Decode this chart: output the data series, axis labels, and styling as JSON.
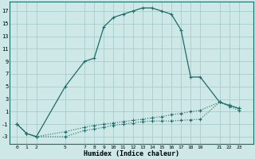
{
  "xlabel": "Humidex (Indice chaleur)",
  "bg_color": "#cde8e6",
  "line_color": "#1e6b67",
  "grid_color": "#a8cccb",
  "series": [
    {
      "name": "line1_dotted_lower",
      "x": [
        0,
        1,
        2,
        5,
        7,
        8,
        9,
        10,
        11,
        12,
        13,
        14,
        15,
        16,
        17,
        18,
        19,
        21,
        22,
        23
      ],
      "y": [
        -1.0,
        -2.5,
        -3.0,
        -3.0,
        -2.0,
        -1.8,
        -1.5,
        -1.2,
        -1.0,
        -0.8,
        -0.6,
        -0.5,
        -0.5,
        -0.5,
        -0.4,
        -0.3,
        -0.2,
        2.5,
        1.8,
        1.2
      ],
      "ls": "dotted",
      "lw": 0.8,
      "marker": "+"
    },
    {
      "name": "line2_dotted_mid",
      "x": [
        0,
        1,
        2,
        5,
        7,
        8,
        9,
        10,
        11,
        12,
        13,
        14,
        15,
        16,
        17,
        18,
        19,
        21,
        22,
        23
      ],
      "y": [
        -1.0,
        -2.5,
        -3.0,
        -2.2,
        -1.5,
        -1.2,
        -1.0,
        -0.8,
        -0.6,
        -0.4,
        -0.2,
        0.0,
        0.2,
        0.5,
        0.7,
        1.0,
        1.2,
        2.5,
        2.0,
        1.5
      ],
      "ls": "dotted",
      "lw": 0.8,
      "marker": "+"
    },
    {
      "name": "line3_solid_top",
      "x": [
        0,
        1,
        2,
        5,
        7,
        8,
        9,
        10,
        11,
        12,
        13,
        14,
        15,
        16,
        17,
        18,
        19,
        21,
        22,
        23
      ],
      "y": [
        -1.0,
        -2.5,
        -3.0,
        5.0,
        9.0,
        9.5,
        14.5,
        16.0,
        16.5,
        17.0,
        17.5,
        17.5,
        17.0,
        16.5,
        14.0,
        6.5,
        6.5,
        2.5,
        2.0,
        1.5
      ],
      "ls": "solid",
      "lw": 0.9,
      "marker": "+"
    }
  ],
  "xtick_vals": [
    0,
    1,
    2,
    5,
    7,
    8,
    9,
    10,
    11,
    12,
    13,
    14,
    15,
    16,
    17,
    18,
    19,
    21,
    22,
    23
  ],
  "xtick_labels": [
    "0",
    "1",
    "2",
    "5",
    "7",
    "8",
    "9",
    "10",
    "11",
    "12",
    "13",
    "14",
    "15",
    "16",
    "17",
    "18",
    "19",
    "21",
    "22",
    "23"
  ],
  "ytick_vals": [
    -3,
    -1,
    1,
    3,
    5,
    7,
    9,
    11,
    13,
    15,
    17
  ],
  "ytick_labels": [
    "-3",
    "-1",
    "1",
    "3",
    "5",
    "7",
    "9",
    "11",
    "13",
    "15",
    "17"
  ],
  "ylim": [
    -4.2,
    18.5
  ],
  "xlim": [
    -0.8,
    24.5
  ],
  "figw": 3.2,
  "figh": 2.0,
  "dpi": 100
}
